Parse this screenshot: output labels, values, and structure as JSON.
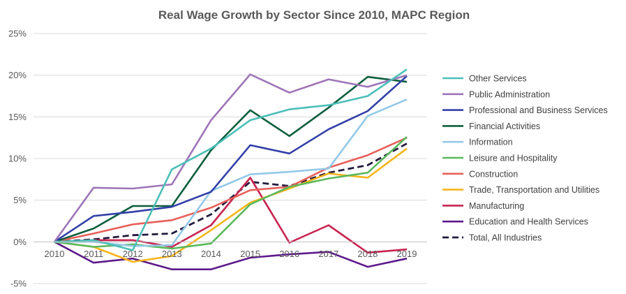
{
  "chart_data": {
    "type": "line",
    "title": "Real Wage Growth by Sector Since 2010, MAPC Region",
    "xlabel": "",
    "ylabel": "",
    "x": [
      "2010",
      "2011",
      "2012",
      "2013",
      "2014",
      "2015",
      "2016",
      "2017",
      "2018",
      "2019"
    ],
    "ylim": [
      -0.05,
      0.25
    ],
    "yticks": [
      -0.05,
      0,
      0.05,
      0.1,
      0.15,
      0.2,
      0.25
    ],
    "ytick_labels": [
      "-5%",
      "0%",
      "5%",
      "10%",
      "15%",
      "20%",
      "25%"
    ],
    "grid": "horizontal",
    "legend_position": "right",
    "series": [
      {
        "name": "Other Services",
        "color": "#4bbfb8",
        "dashed": false,
        "values": [
          0,
          0.002,
          -0.01,
          0.087,
          0.112,
          0.146,
          0.159,
          0.164,
          0.175,
          0.207
        ]
      },
      {
        "name": "Public Administration",
        "color": "#9e75b8",
        "dashed": false,
        "values": [
          0,
          0.065,
          0.064,
          0.069,
          0.146,
          0.201,
          0.179,
          0.195,
          0.186,
          0.2
        ]
      },
      {
        "name": "Professional and Business Services",
        "color": "#3340a8",
        "dashed": false,
        "values": [
          0,
          0.031,
          0.036,
          0.042,
          0.06,
          0.116,
          0.106,
          0.135,
          0.157,
          0.199
        ]
      },
      {
        "name": "Financial Activities",
        "color": "#0b5e3c",
        "dashed": false,
        "values": [
          0,
          0.016,
          0.043,
          0.043,
          0.11,
          0.158,
          0.127,
          0.161,
          0.198,
          0.192
        ]
      },
      {
        "name": "Information",
        "color": "#93c9e7",
        "dashed": false,
        "values": [
          0,
          0.0,
          -0.005,
          -0.004,
          0.061,
          0.081,
          0.084,
          0.088,
          0.151,
          0.171
        ]
      },
      {
        "name": "Leisure and Hospitality",
        "color": "#5cb85c",
        "dashed": false,
        "values": [
          0,
          -0.006,
          -0.003,
          -0.008,
          -0.002,
          0.045,
          0.066,
          0.076,
          0.083,
          0.126
        ]
      },
      {
        "name": "Construction",
        "color": "#e8605a",
        "dashed": false,
        "values": [
          0,
          0.01,
          0.021,
          0.026,
          0.041,
          0.062,
          0.066,
          0.089,
          0.104,
          0.125
        ]
      },
      {
        "name": "Trade, Transportation and Utilities",
        "color": "#f7b519",
        "dashed": false,
        "values": [
          0,
          -0.006,
          -0.024,
          -0.017,
          0.014,
          0.047,
          0.064,
          0.082,
          0.077,
          0.112
        ]
      },
      {
        "name": "Manufacturing",
        "color": "#c8234f",
        "dashed": false,
        "values": [
          0,
          0.002,
          0.002,
          -0.006,
          0.02,
          0.077,
          -0.001,
          0.02,
          -0.013,
          -0.009
        ]
      },
      {
        "name": "Education and Health Services",
        "color": "#5d1a8b",
        "dashed": false,
        "values": [
          0,
          -0.025,
          -0.02,
          -0.033,
          -0.033,
          -0.019,
          -0.015,
          -0.012,
          -0.03,
          -0.02
        ]
      },
      {
        "name": "Total, All Industries",
        "color": "#231b3d",
        "dashed": true,
        "values": [
          0,
          0.003,
          0.008,
          0.01,
          0.033,
          0.072,
          0.067,
          0.083,
          0.092,
          0.118
        ]
      }
    ]
  }
}
